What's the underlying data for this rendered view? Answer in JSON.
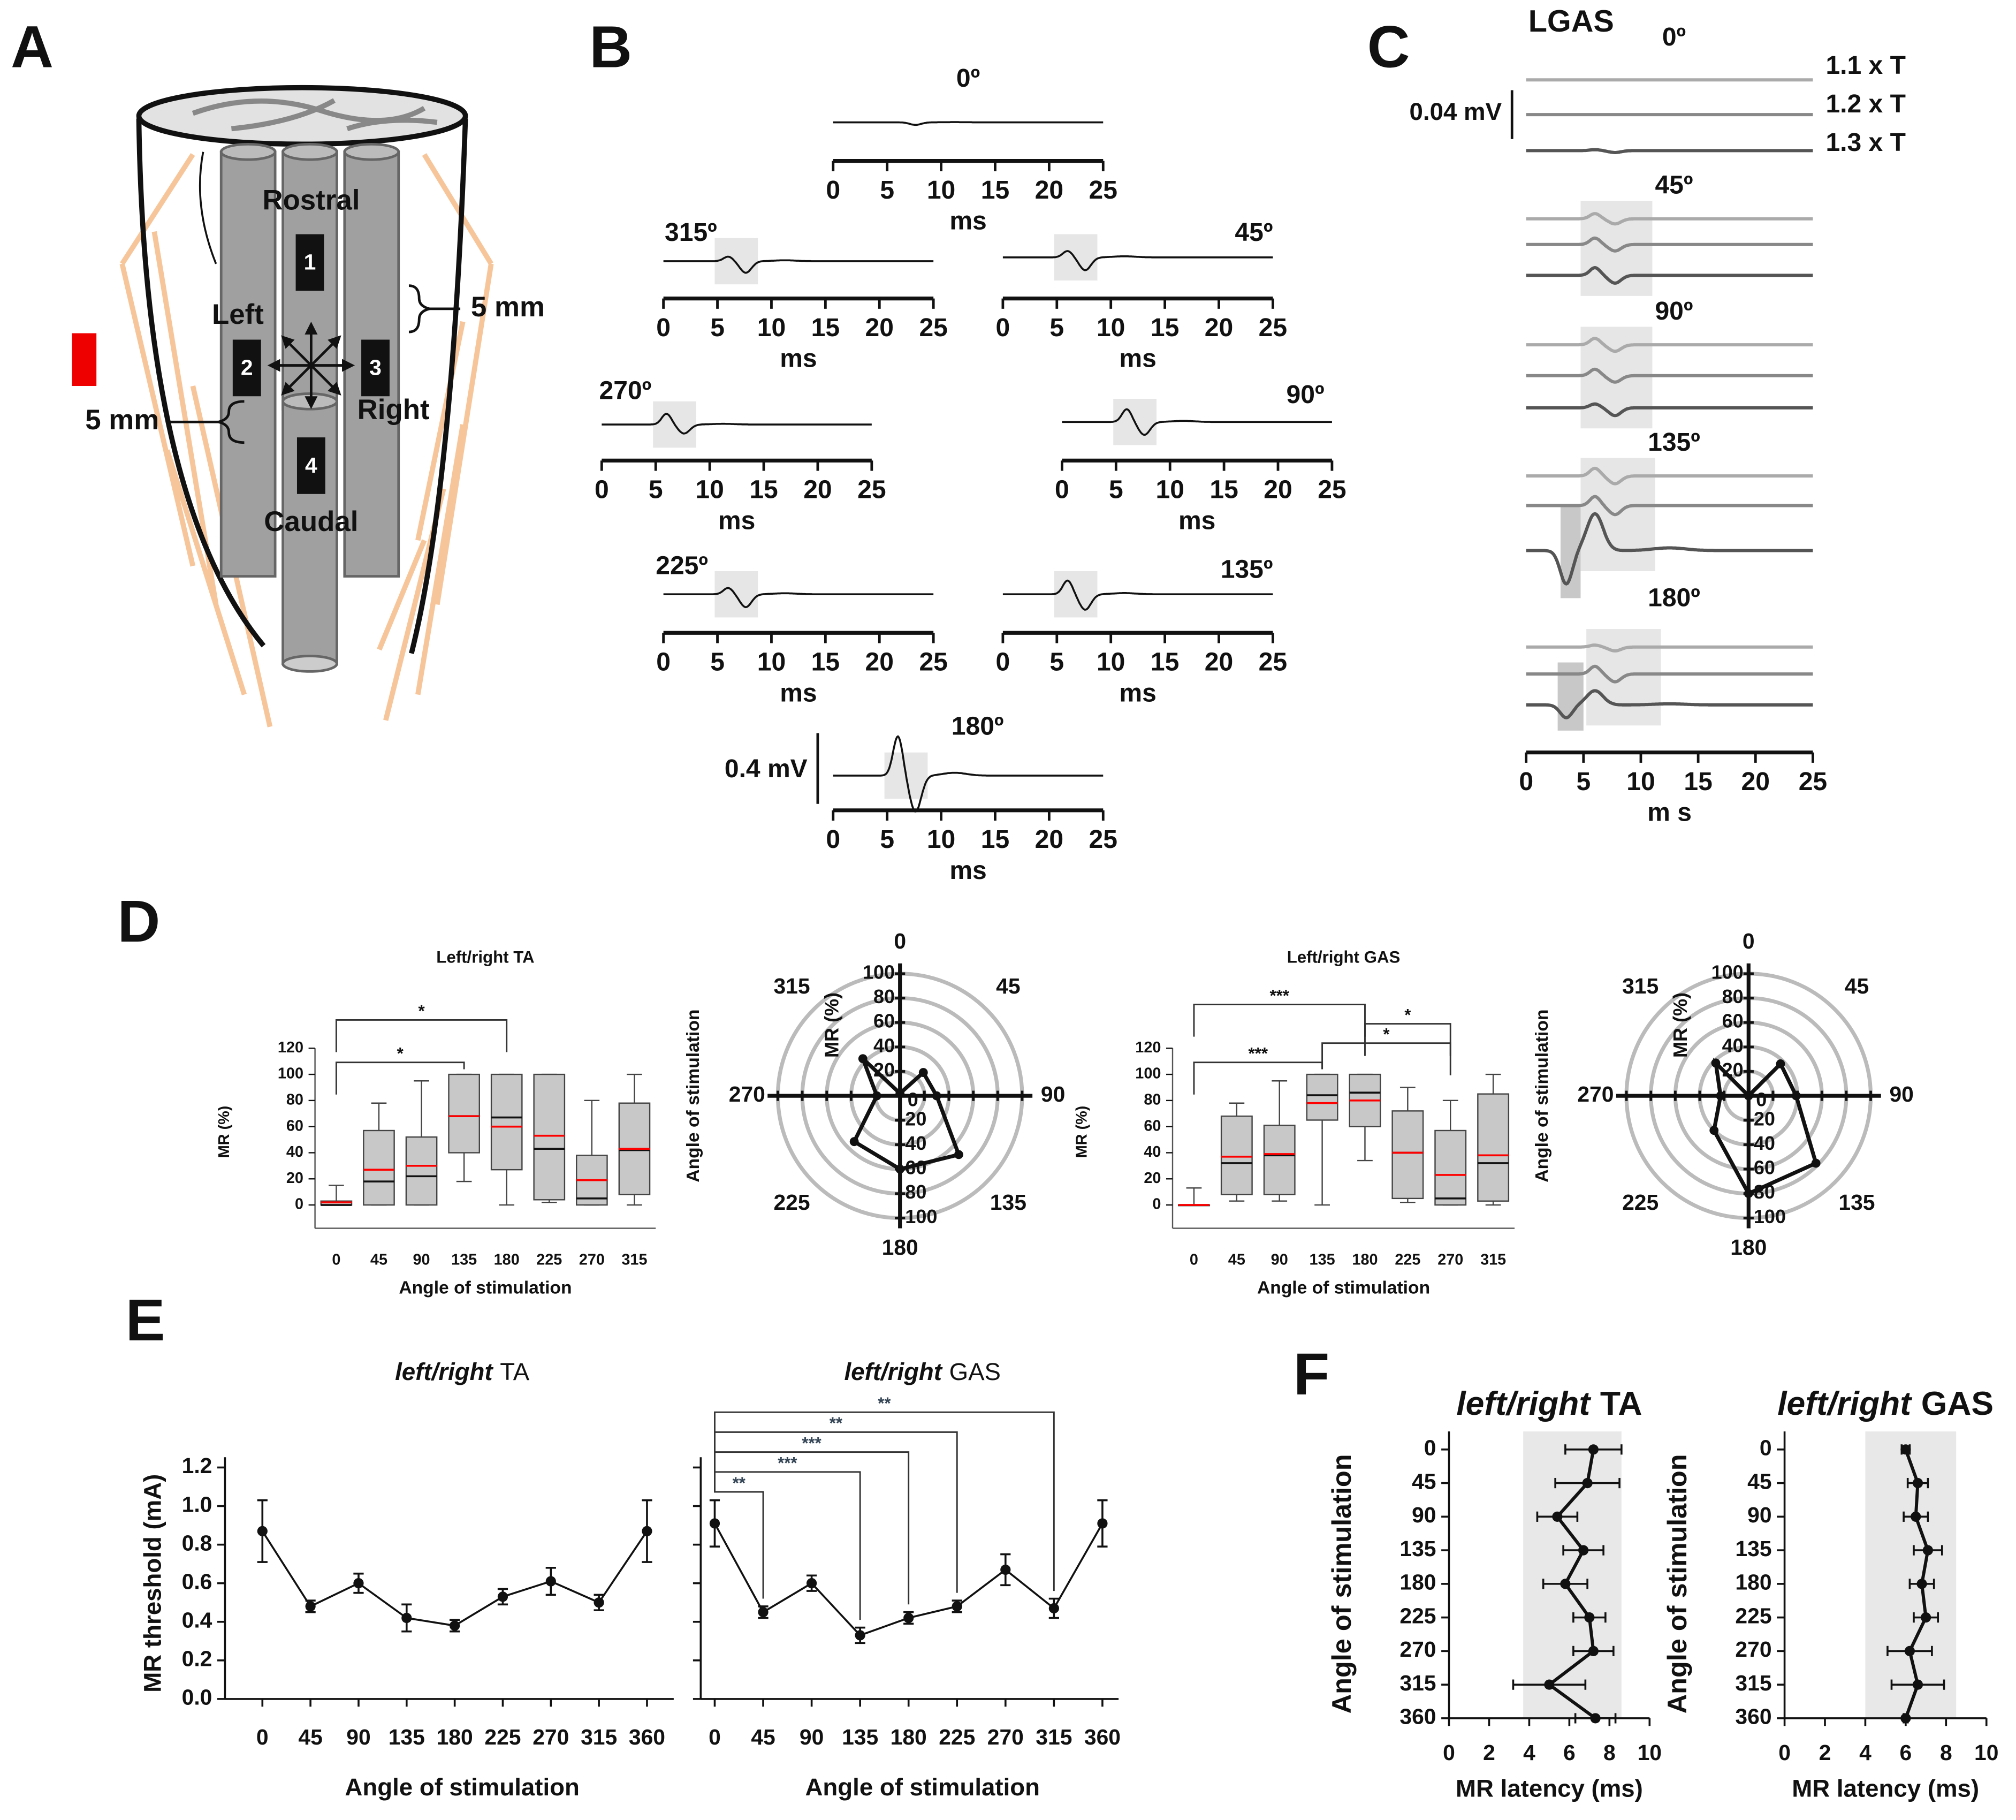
{
  "panel_labels": [
    "A",
    "B",
    "C",
    "D",
    "E",
    "F"
  ],
  "diagram": {
    "labels": [
      "Rostral",
      "Left",
      "Right",
      "Caudal"
    ],
    "electrodes": [
      "1",
      "2",
      "3",
      "4"
    ],
    "spacing": [
      "5 mm",
      "5 mm"
    ]
  },
  "traces_b": {
    "unit": "ms",
    "xlim": [
      0,
      25
    ],
    "xticks": [
      0,
      5,
      10,
      15,
      20,
      25
    ],
    "scale": "0.4 mV",
    "angles": [
      "0º",
      "315º",
      "45º",
      "270º",
      "90º",
      "225º",
      "135º",
      "180º"
    ]
  },
  "traces_c": {
    "title": "LGAS",
    "unit": "m s",
    "xlim": [
      0,
      25
    ],
    "xticks": [
      0,
      5,
      10,
      15,
      20,
      25
    ],
    "scale": "0.04 mV",
    "intensities": [
      "1.1 x T",
      "1.2 x T",
      "1.3 x T"
    ],
    "angles": [
      "0º",
      "45º",
      "90º",
      "135º",
      "180º"
    ]
  },
  "chart_data": [
    {
      "type": "box",
      "title": "Left/right TA",
      "ylabel": "MR (%)",
      "xlabel": "Angle of stimulation",
      "categories": [
        "0",
        "45",
        "90",
        "135",
        "180",
        "225",
        "270",
        "315"
      ],
      "min": [
        0,
        0,
        0,
        18,
        0,
        2,
        0,
        0
      ],
      "q1": [
        0,
        0,
        0,
        40,
        27,
        4,
        0,
        8
      ],
      "median": [
        0,
        18,
        22,
        68,
        67,
        43,
        5,
        42
      ],
      "q3": [
        3,
        57,
        52,
        100,
        100,
        100,
        38,
        78
      ],
      "max": [
        15,
        78,
        95,
        100,
        100,
        100,
        80,
        100
      ],
      "mean": [
        2,
        27,
        30,
        68,
        60,
        53,
        19,
        43
      ],
      "box_color": "#c8c8c8",
      "mean_color": "#ff0000",
      "ylim": [
        -8,
        120
      ],
      "yticks": [
        0,
        20,
        40,
        60,
        80,
        100,
        120
      ],
      "significance": [
        {
          "from": "0",
          "to": "135",
          "label": "*"
        },
        {
          "from": "0",
          "to": "180",
          "label": "*"
        }
      ]
    },
    {
      "type": "radar",
      "ylabel": "MR (%)",
      "xlabel": "Angle of stimulation",
      "theta": [
        0,
        45,
        90,
        135,
        180,
        225,
        270,
        315
      ],
      "values": [
        2,
        27,
        30,
        68,
        60,
        53,
        19,
        43
      ],
      "rlim": [
        0,
        100
      ],
      "rticks": [
        0,
        20,
        40,
        60,
        80,
        100
      ],
      "color": "#111111",
      "ring_color": "#bbbbbb"
    },
    {
      "type": "box",
      "title": "Left/right GAS",
      "ylabel": "MR (%)",
      "xlabel": "Angle of stimulation",
      "categories": [
        "0",
        "45",
        "90",
        "135",
        "180",
        "225",
        "270",
        "315"
      ],
      "min": [
        0,
        3,
        3,
        0,
        34,
        2,
        0,
        0
      ],
      "q1": [
        0,
        8,
        8,
        65,
        60,
        5,
        0,
        3
      ],
      "median": [
        0,
        32,
        38,
        84,
        86,
        40,
        5,
        32
      ],
      "q3": [
        0,
        68,
        61,
        100,
        100,
        72,
        57,
        85
      ],
      "max": [
        13,
        78,
        95,
        100,
        100,
        90,
        80,
        100
      ],
      "mean": [
        0,
        37,
        39,
        78,
        80,
        40,
        23,
        38
      ],
      "box_color": "#c8c8c8",
      "mean_color": "#ff0000",
      "ylim": [
        -8,
        120
      ],
      "yticks": [
        0,
        20,
        40,
        60,
        80,
        100,
        120
      ],
      "significance": [
        {
          "from": "0",
          "to": "135",
          "label": "***"
        },
        {
          "from": "135",
          "to": "270",
          "label": "*"
        },
        {
          "from": "180",
          "to": "270",
          "label": "*"
        },
        {
          "from": "0",
          "to": "180",
          "label": "***"
        }
      ]
    },
    {
      "type": "radar",
      "ylabel": "MR (%)",
      "xlabel": "Angle of stimulation",
      "theta": [
        0,
        45,
        90,
        135,
        180,
        225,
        270,
        315
      ],
      "values": [
        0,
        37,
        39,
        78,
        80,
        40,
        23,
        38
      ],
      "rlim": [
        0,
        100
      ],
      "rticks": [
        0,
        20,
        40,
        60,
        80,
        100
      ],
      "color": "#111111",
      "ring_color": "#bbbbbb"
    },
    {
      "type": "line",
      "title_italic": "left/right",
      "title": "TA",
      "ylabel": "MR threshold (mA)",
      "xlabel": "Angle of stimulation",
      "x": [
        0,
        45,
        90,
        135,
        180,
        225,
        270,
        315,
        360
      ],
      "values": [
        0.87,
        0.48,
        0.6,
        0.42,
        0.38,
        0.53,
        0.61,
        0.5,
        0.87
      ],
      "errors": [
        0.16,
        0.03,
        0.05,
        0.07,
        0.03,
        0.04,
        0.07,
        0.04,
        0.16
      ],
      "color": "#111111",
      "xlim": [
        -35,
        385
      ],
      "xticks": [
        0,
        45,
        90,
        135,
        180,
        225,
        270,
        315,
        360
      ],
      "ylim": [
        0,
        1.2
      ],
      "yticks": [
        {
          "value": 0,
          "label": "0.0"
        },
        0.2,
        0.4,
        0.6,
        0.8,
        {
          "value": 1,
          "label": "1.0"
        },
        1.2
      ]
    },
    {
      "type": "line",
      "title_italic": "left/right",
      "title": "GAS",
      "xlabel": "Angle of stimulation",
      "x": [
        0,
        45,
        90,
        135,
        180,
        225,
        270,
        315,
        360
      ],
      "values": [
        0.91,
        0.45,
        0.6,
        0.33,
        0.42,
        0.48,
        0.67,
        0.47,
        0.91
      ],
      "errors": [
        0.12,
        0.03,
        0.04,
        0.04,
        0.03,
        0.03,
        0.08,
        0.05,
        0.12
      ],
      "color": "#111111",
      "xlim": [
        -13,
        375
      ],
      "xticks": [
        0,
        45,
        90,
        135,
        180,
        225,
        270,
        315,
        360
      ],
      "ylim": [
        0,
        1.2
      ],
      "yticks": [
        0,
        0.2,
        0.4,
        0.6,
        0.8,
        1,
        1.2
      ],
      "ytick_labels": false,
      "significance": [
        {
          "from": 0,
          "to": 45,
          "label": "**"
        },
        {
          "from": 0,
          "to": 135,
          "label": "***"
        },
        {
          "from": 0,
          "to": 180,
          "label": "***"
        },
        {
          "from": 0,
          "to": 225,
          "label": "**"
        },
        {
          "from": 0,
          "to": 315,
          "label": "**"
        }
      ]
    },
    {
      "type": "errorbar-h",
      "title_italic": "left/right",
      "title": "TA",
      "ylabel": "Angle of stimulation",
      "xlabel": "MR latency (ms)",
      "categories": [
        "0",
        "45",
        "90",
        "135",
        "180",
        "225",
        "270",
        "315",
        "360"
      ],
      "values": [
        7.2,
        6.9,
        5.4,
        6.7,
        5.8,
        7.0,
        7.2,
        5.0,
        7.3
      ],
      "errors": [
        1.4,
        1.6,
        1.0,
        1.0,
        1.1,
        0.8,
        1.0,
        1.8,
        1.0
      ],
      "xlim": [
        0,
        10
      ],
      "xticks": [
        0,
        2,
        4,
        6,
        8,
        10
      ],
      "band": [
        3.7,
        8.6
      ],
      "band_color": "#e8e8e8",
      "color": "#111111"
    },
    {
      "type": "errorbar-h",
      "title_italic": "left/right",
      "title": "GAS",
      "ylabel": "Angle of stimulation",
      "xlabel": "MR latency (ms)",
      "categories": [
        "0",
        "45",
        "90",
        "135",
        "180",
        "225",
        "270",
        "315",
        "360"
      ],
      "values": [
        6.0,
        6.6,
        6.5,
        7.1,
        6.8,
        7.0,
        6.2,
        6.6,
        6.0
      ],
      "errors": [
        0.2,
        0.5,
        0.6,
        0.7,
        0.6,
        0.6,
        1.1,
        1.3,
        0.1
      ],
      "xlim": [
        0,
        10
      ],
      "xticks": [
        0,
        2,
        4,
        6,
        8,
        10
      ],
      "band": [
        4.0,
        8.5
      ],
      "band_color": "#e8e8e8",
      "color": "#111111"
    }
  ]
}
